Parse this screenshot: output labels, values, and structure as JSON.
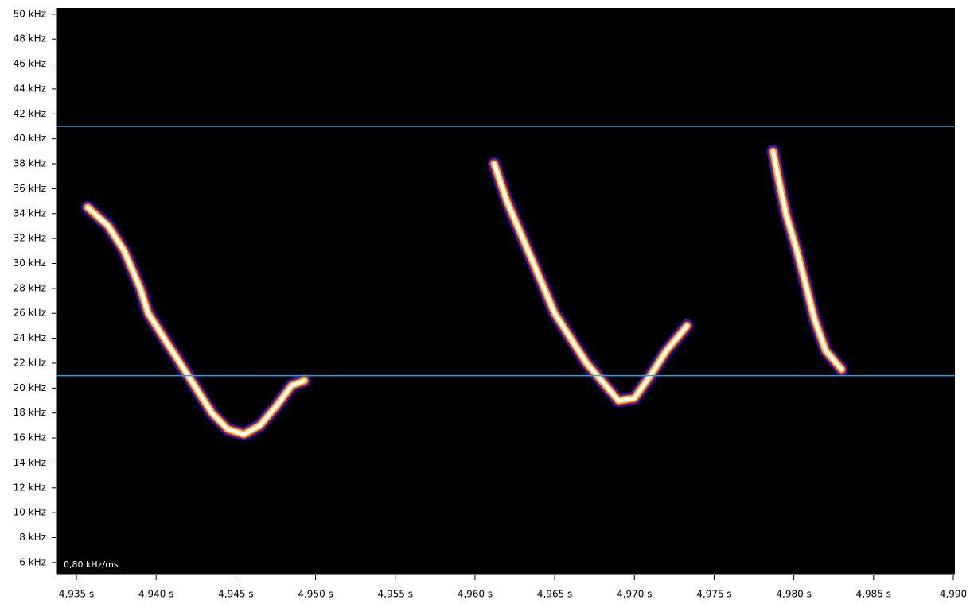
{
  "chart_data": {
    "type": "spectrogram",
    "annotation": "0,80 kHz/ms",
    "xlim": [
      4.9338,
      4.9901
    ],
    "ylim": [
      5.1,
      50.5
    ],
    "xticks": [
      {
        "value": 4.935,
        "label": "4,935 s"
      },
      {
        "value": 4.94,
        "label": "4,940 s"
      },
      {
        "value": 4.945,
        "label": "4,945 s"
      },
      {
        "value": 4.95,
        "label": "4,950 s"
      },
      {
        "value": 4.955,
        "label": "4,955 s"
      },
      {
        "value": 4.96,
        "label": "4,960 s"
      },
      {
        "value": 4.965,
        "label": "4,965 s"
      },
      {
        "value": 4.97,
        "label": "4,970 s"
      },
      {
        "value": 4.975,
        "label": "4,975 s"
      },
      {
        "value": 4.98,
        "label": "4,980 s"
      },
      {
        "value": 4.985,
        "label": "4,985 s"
      },
      {
        "value": 4.99,
        "label": "4,990"
      }
    ],
    "yticks": [
      {
        "value": 50,
        "label": "50 kHz"
      },
      {
        "value": 48,
        "label": "48 kHz"
      },
      {
        "value": 46,
        "label": "46 kHz"
      },
      {
        "value": 44,
        "label": "44 kHz"
      },
      {
        "value": 42,
        "label": "42 kHz"
      },
      {
        "value": 40,
        "label": "40 kHz"
      },
      {
        "value": 38,
        "label": "38 kHz"
      },
      {
        "value": 36,
        "label": "36 kHz"
      },
      {
        "value": 34,
        "label": "34 kHz"
      },
      {
        "value": 32,
        "label": "32 kHz"
      },
      {
        "value": 30,
        "label": "30 kHz"
      },
      {
        "value": 28,
        "label": "28 kHz"
      },
      {
        "value": 26,
        "label": "26 kHz"
      },
      {
        "value": 24,
        "label": "24 kHz"
      },
      {
        "value": 22,
        "label": "22 kHz"
      },
      {
        "value": 20,
        "label": "20 kHz"
      },
      {
        "value": 18,
        "label": "18 kHz"
      },
      {
        "value": 16,
        "label": "16 kHz"
      },
      {
        "value": 14,
        "label": "14 kHz"
      },
      {
        "value": 12,
        "label": "12 kHz"
      },
      {
        "value": 10,
        "label": "10 kHz"
      },
      {
        "value": 8,
        "label": "8 kHz"
      },
      {
        "value": 6,
        "label": "6 kHz"
      }
    ],
    "hlines": [
      41,
      21
    ],
    "hline_color": "#2a9fd6",
    "background": "#000000",
    "series": [
      {
        "x": [
          4.9357,
          4.937,
          4.938,
          4.939,
          4.9395,
          4.9405,
          4.9415,
          4.9425,
          4.9435,
          4.9445,
          4.9455,
          4.9465,
          4.9475,
          4.9485,
          4.9493
        ],
        "values": [
          34.5,
          33,
          31,
          28,
          26,
          24,
          22,
          20,
          18,
          16.7,
          16.3,
          17,
          18.5,
          20.2,
          20.6
        ]
      },
      {
        "x": [
          4.9612,
          4.962,
          4.963,
          4.964,
          4.965,
          4.966,
          4.967,
          4.968,
          4.969,
          4.97,
          4.971,
          4.972,
          4.9733
        ],
        "values": [
          38,
          35,
          32,
          29,
          26,
          24,
          22,
          20.5,
          19,
          19.2,
          21,
          23,
          25
        ]
      },
      {
        "x": [
          4.9787,
          4.979,
          4.9795,
          4.9802,
          4.9808,
          4.9813,
          4.982,
          4.983
        ],
        "values": [
          39,
          37,
          34,
          31,
          28,
          25.5,
          23,
          21.5
        ]
      }
    ]
  }
}
